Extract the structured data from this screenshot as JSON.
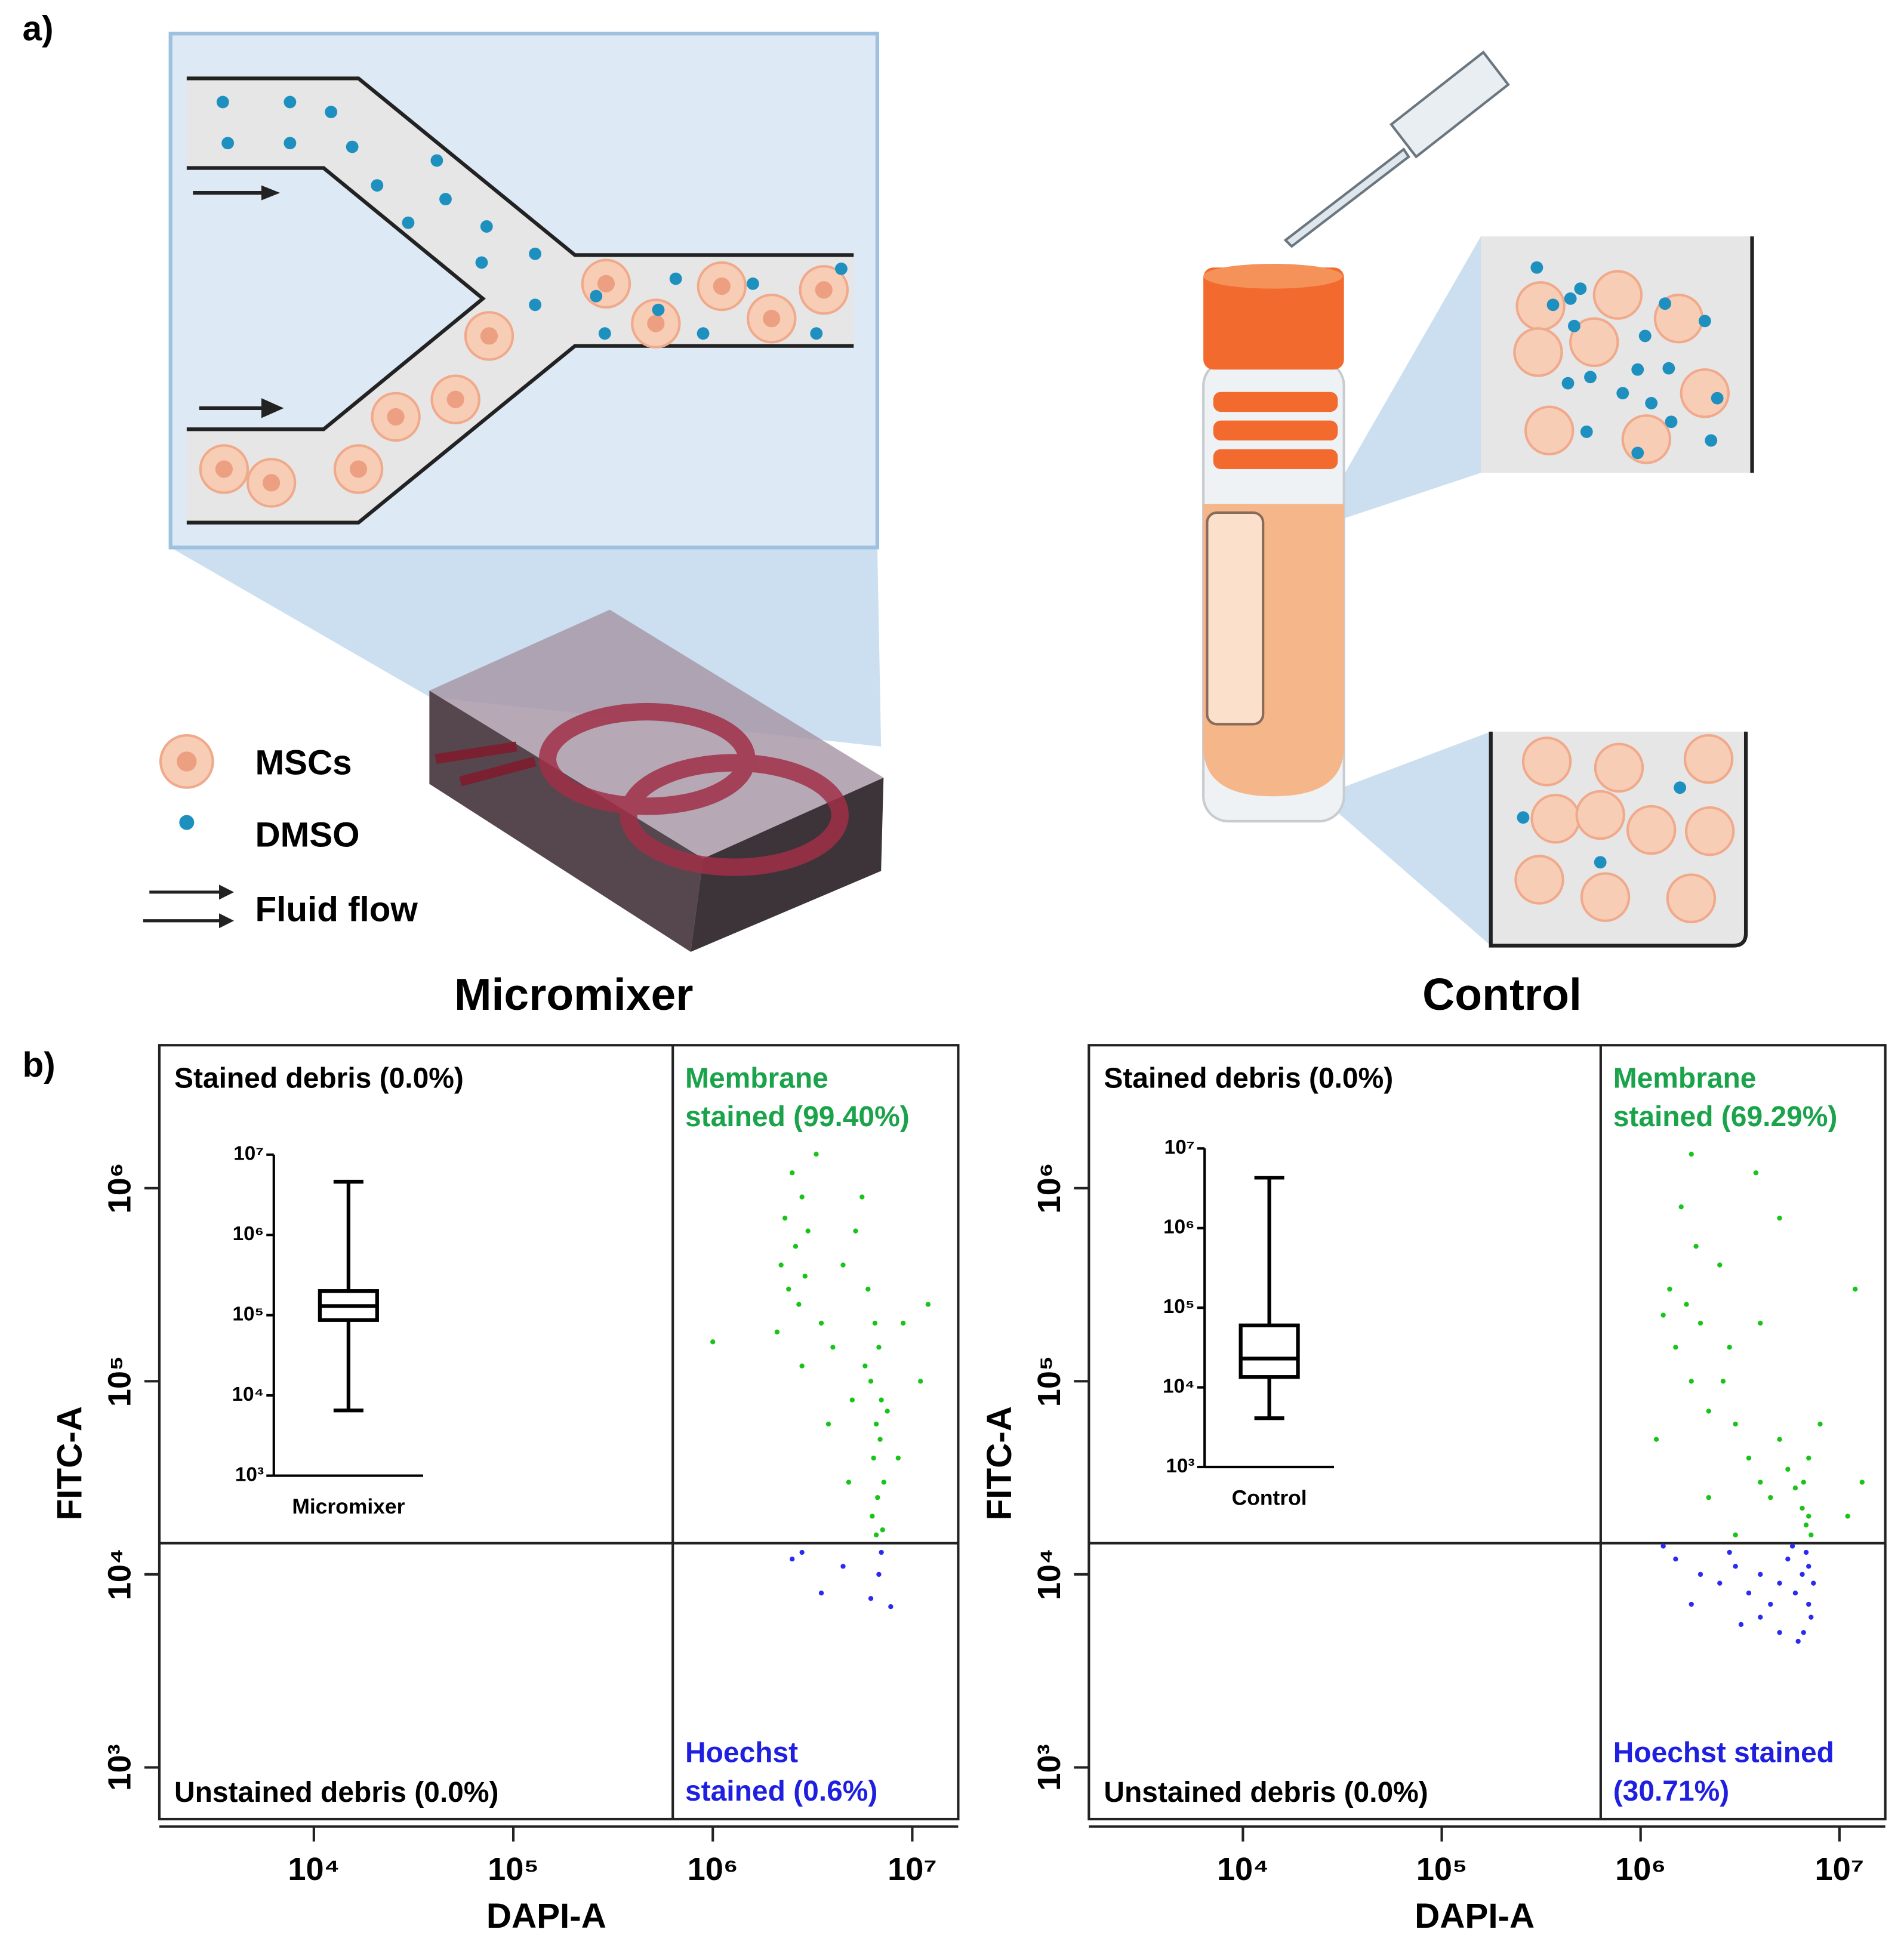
{
  "figure": {
    "panel_labels": [
      "a)",
      "b)"
    ],
    "legend": [
      {
        "label": "MSCs"
      },
      {
        "label": "DMSO"
      },
      {
        "label": "Fluid flow"
      }
    ]
  },
  "chart_data": [
    {
      "type": "scatter",
      "title": "Micromixer",
      "xlabel": "DAPI-A",
      "ylabel": "FITC-A",
      "xscale": "log",
      "yscale": "log",
      "xlim": [
        1680,
        17000000
      ],
      "ylim": [
        540,
        5500000
      ],
      "xticks": [
        {
          "value": 10000,
          "label": "10⁴"
        },
        {
          "value": 100000,
          "label": "10⁵"
        },
        {
          "value": 1000000,
          "label": "10⁶"
        },
        {
          "value": 10000000,
          "label": "10⁷"
        }
      ],
      "yticks": [
        {
          "value": 1000,
          "label": "10³"
        },
        {
          "value": 10000,
          "label": "10⁴"
        },
        {
          "value": 100000,
          "label": "10⁵"
        },
        {
          "value": 1000000,
          "label": "10⁶"
        }
      ],
      "gates": [
        630000,
        14500
      ],
      "quadrant_labels": [
        {
          "corner": "top-left",
          "color": "#000000",
          "lines": [
            "Stained debris (0.0%)"
          ]
        },
        {
          "corner": "top-right",
          "color": "#1aa34a",
          "lines": [
            "Membrane",
            "stained (99.40%)"
          ]
        },
        {
          "corner": "bottom-left",
          "color": "#000000",
          "lines": [
            "Unstained debris (0.0%)"
          ]
        },
        {
          "corner": "bottom-right",
          "color": "#1f1fe0",
          "lines": [
            "Hoechst",
            "stained (0.6%)"
          ]
        }
      ],
      "series": [
        {
          "color": "#19c41a",
          "x": [
            2500000,
            2800000,
            2300000,
            3000000,
            2600000,
            2200000,
            2900000,
            2700000,
            3300000,
            2400000,
            3500000,
            2100000,
            2800000,
            6500000,
            6800000,
            6200000,
            7000000,
            6600000,
            6900000,
            6400000,
            7200000,
            6700000,
            6300000,
            7100000,
            5800000,
            7500000,
            6000000,
            5200000,
            5600000,
            4500000,
            4000000,
            9000000,
            11000000,
            8500000,
            12000000,
            3800000,
            4800000,
            6600000,
            1000000,
            5000000
          ],
          "values": [
            1200000,
            900000,
            700000,
            600000,
            500000,
            400000,
            350000,
            250000,
            1500000,
            300000,
            200000,
            180000,
            120000,
            200000,
            150000,
            100000,
            80000,
            60000,
            50000,
            40000,
            30000,
            25000,
            20000,
            17000,
            120000,
            70000,
            300000,
            600000,
            900000,
            400000,
            150000,
            200000,
            100000,
            40000,
            250000,
            60000,
            30000,
            16000,
            160000,
            80000
          ]
        },
        {
          "color": "#2a2af0",
          "x": [
            2800000,
            4500000,
            3500000,
            6800000,
            7000000,
            6200000,
            7800000,
            2500000
          ],
          "values": [
            13000,
            11000,
            8000,
            10000,
            13000,
            7500,
            6800,
            12000
          ]
        }
      ]
    },
    {
      "type": "scatter",
      "title": "Control",
      "xlabel": "DAPI-A",
      "ylabel": "FITC-A",
      "xscale": "log",
      "yscale": "log",
      "xlim": [
        1680,
        17000000
      ],
      "ylim": [
        540,
        5500000
      ],
      "xticks": [
        {
          "value": 10000,
          "label": "10⁴"
        },
        {
          "value": 100000,
          "label": "10⁵"
        },
        {
          "value": 1000000,
          "label": "10⁶"
        },
        {
          "value": 10000000,
          "label": "10⁷"
        }
      ],
      "yticks": [
        {
          "value": 1000,
          "label": "10³"
        },
        {
          "value": 10000,
          "label": "10⁴"
        },
        {
          "value": 100000,
          "label": "10⁵"
        },
        {
          "value": 1000000,
          "label": "10⁶"
        }
      ],
      "gates": [
        630000,
        14500
      ],
      "quadrant_labels": [
        {
          "corner": "top-left",
          "color": "#000000",
          "lines": [
            "Stained debris (0.0%)"
          ]
        },
        {
          "corner": "top-right",
          "color": "#1aa34a",
          "lines": [
            "Membrane",
            "stained (69.29%)"
          ]
        },
        {
          "corner": "bottom-left",
          "color": "#000000",
          "lines": [
            "Unstained debris (0.0%)"
          ]
        },
        {
          "corner": "bottom-right",
          "color": "#1f1fe0",
          "lines": [
            "Hoechst stained",
            "(30.71%)"
          ]
        }
      ],
      "series": [
        {
          "color": "#19c41a",
          "x": [
            1800000,
            1600000,
            1900000,
            1400000,
            1700000,
            2000000,
            1500000,
            1800000,
            1300000,
            2200000,
            2600000,
            3000000,
            3500000,
            4000000,
            4500000,
            5000000,
            5500000,
            6000000,
            6500000,
            7000000,
            6800000,
            7200000,
            6600000,
            7000000,
            3800000,
            5000000,
            2500000,
            4000000,
            8000000,
            12000000,
            13000000,
            11000000,
            2200000,
            3000000,
            1200000,
            2800000
          ],
          "values": [
            1500000,
            800000,
            500000,
            300000,
            250000,
            200000,
            150000,
            100000,
            220000,
            70000,
            100000,
            60000,
            40000,
            30000,
            25000,
            50000,
            35000,
            28000,
            22000,
            20000,
            18000,
            16000,
            30000,
            40000,
            1200000,
            700000,
            400000,
            200000,
            60000,
            300000,
            30000,
            20000,
            25000,
            16000,
            50000,
            150000
          ]
        },
        {
          "color": "#2a2af0",
          "x": [
            1500000,
            2000000,
            2500000,
            3000000,
            3500000,
            4000000,
            4500000,
            5000000,
            5500000,
            6000000,
            6500000,
            7000000,
            6800000,
            7200000,
            6600000,
            7000000,
            6200000,
            5000000,
            4000000,
            1800000,
            1300000,
            2800000,
            3200000,
            5800000,
            7400000
          ],
          "values": [
            12000,
            10000,
            9000,
            11000,
            8000,
            10000,
            7000,
            9000,
            12000,
            8000,
            10000,
            7000,
            13000,
            6000,
            5000,
            11000,
            4500,
            5000,
            6000,
            7000,
            14000,
            13000,
            5500,
            14000,
            9000
          ]
        }
      ]
    },
    {
      "type": "box",
      "yscale": "log",
      "ylim": [
        1000,
        10000000
      ],
      "yticks": [
        {
          "value": 1000,
          "label": "10³"
        },
        {
          "value": 10000,
          "label": "10⁴"
        },
        {
          "value": 100000,
          "label": "10⁵"
        },
        {
          "value": 1000000,
          "label": "10⁶"
        },
        {
          "value": 10000000,
          "label": "10⁷"
        }
      ],
      "categories": [
        "Micromixer"
      ],
      "color": "#000000",
      "boxes": [
        {
          "min": 6500,
          "q1": 87000,
          "median": 130000,
          "q3": 200000,
          "max": 4600000
        }
      ]
    },
    {
      "type": "box",
      "yscale": "log",
      "ylim": [
        1000,
        10000000
      ],
      "yticks": [
        {
          "value": 1000,
          "label": "10³"
        },
        {
          "value": 10000,
          "label": "10⁴"
        },
        {
          "value": 100000,
          "label": "10⁵"
        },
        {
          "value": 1000000,
          "label": "10⁶"
        },
        {
          "value": 10000000,
          "label": "10⁷"
        }
      ],
      "categories": [
        "Control"
      ],
      "color": "#000000",
      "boxes": [
        {
          "min": 4100,
          "q1": 13500,
          "median": 23000,
          "q3": 60000,
          "max": 4300000
        }
      ]
    }
  ]
}
